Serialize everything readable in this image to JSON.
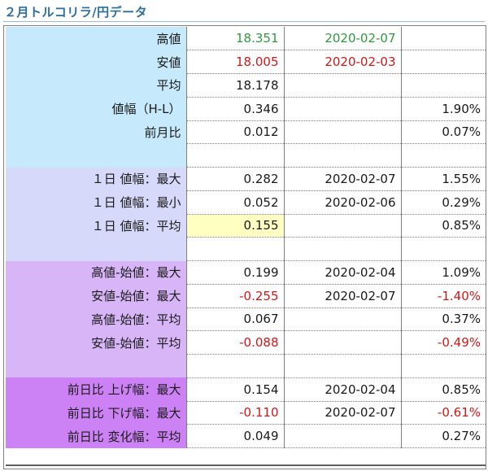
{
  "title": "２月トルコリラ/円データ",
  "colors": {
    "green": "#2e9a3e",
    "red": "#d01818",
    "black": "#1a1a1a"
  },
  "rows": [
    {
      "label": "高値",
      "bg": "#c6e9fb",
      "value": "18.351",
      "value_color": "green",
      "date": "2020-02-07",
      "date_color": "green",
      "pct": "",
      "pct_color": "black"
    },
    {
      "label": "安値",
      "bg": "#c6e9fb",
      "value": "18.005",
      "value_color": "red",
      "date": "2020-02-03",
      "date_color": "red",
      "pct": "",
      "pct_color": "black"
    },
    {
      "label": "平均",
      "bg": "#c6e9fb",
      "value": "18.178",
      "value_color": "black",
      "date": "",
      "date_color": "black",
      "pct": "",
      "pct_color": "black"
    },
    {
      "label": "値幅（H-L）",
      "bg": "#c6e9fb",
      "value": "0.346",
      "value_color": "black",
      "date": "",
      "date_color": "black",
      "pct": "1.90%",
      "pct_color": "black"
    },
    {
      "label": "前月比",
      "bg": "#c6e9fb",
      "value": "0.012",
      "value_color": "black",
      "date": "",
      "date_color": "black",
      "pct": "0.07%",
      "pct_color": "black"
    },
    {
      "label": "",
      "bg": "#c6e9fb",
      "value": "",
      "value_color": "black",
      "date": "",
      "date_color": "black",
      "pct": "",
      "pct_color": "black"
    },
    {
      "label": "１日 値幅：最大",
      "bg": "#d6d9fa",
      "value": "0.282",
      "value_color": "black",
      "date": "2020-02-07",
      "date_color": "black",
      "pct": "1.55%",
      "pct_color": "black"
    },
    {
      "label": "１日 値幅：最小",
      "bg": "#d6d9fa",
      "value": "0.052",
      "value_color": "black",
      "date": "2020-02-06",
      "date_color": "black",
      "pct": "0.29%",
      "pct_color": "black"
    },
    {
      "label": "１日 値幅：平均",
      "bg": "#d6d9fa",
      "value": "0.155",
      "value_color": "black",
      "date": "",
      "date_color": "black",
      "pct": "0.85%",
      "pct_color": "black",
      "highlight": true
    },
    {
      "label": "",
      "bg": "#d6d9fa",
      "value": "",
      "value_color": "black",
      "date": "",
      "date_color": "black",
      "pct": "",
      "pct_color": "black"
    },
    {
      "label": "高値-始値：最大",
      "bg": "#d7b5f7",
      "value": "0.199",
      "value_color": "black",
      "date": "2020-02-04",
      "date_color": "black",
      "pct": "1.09%",
      "pct_color": "black"
    },
    {
      "label": "安値-始値：最大",
      "bg": "#d7b5f7",
      "value": "-0.255",
      "value_color": "red",
      "date": "2020-02-07",
      "date_color": "black",
      "pct": "-1.40%",
      "pct_color": "red"
    },
    {
      "label": "高値-始値：平均",
      "bg": "#d7b5f7",
      "value": "0.067",
      "value_color": "black",
      "date": "",
      "date_color": "black",
      "pct": "0.37%",
      "pct_color": "black"
    },
    {
      "label": "安値-始値：平均",
      "bg": "#d7b5f7",
      "value": "-0.088",
      "value_color": "red",
      "date": "",
      "date_color": "black",
      "pct": "-0.49%",
      "pct_color": "red"
    },
    {
      "label": "",
      "bg": "#d7b5f7",
      "value": "",
      "value_color": "black",
      "date": "",
      "date_color": "black",
      "pct": "",
      "pct_color": "black"
    },
    {
      "label": "前日比 上げ幅：最大",
      "bg": "#cc82f5",
      "value": "0.154",
      "value_color": "black",
      "date": "2020-02-04",
      "date_color": "black",
      "pct": "0.85%",
      "pct_color": "black"
    },
    {
      "label": "前日比 下げ幅：最大",
      "bg": "#cc82f5",
      "value": "-0.110",
      "value_color": "red",
      "date": "2020-02-07",
      "date_color": "black",
      "pct": "-0.61%",
      "pct_color": "red"
    },
    {
      "label": "前日比 変化幅：平均",
      "bg": "#cc82f5",
      "value": "0.049",
      "value_color": "black",
      "date": "",
      "date_color": "black",
      "pct": "0.27%",
      "pct_color": "black"
    }
  ]
}
